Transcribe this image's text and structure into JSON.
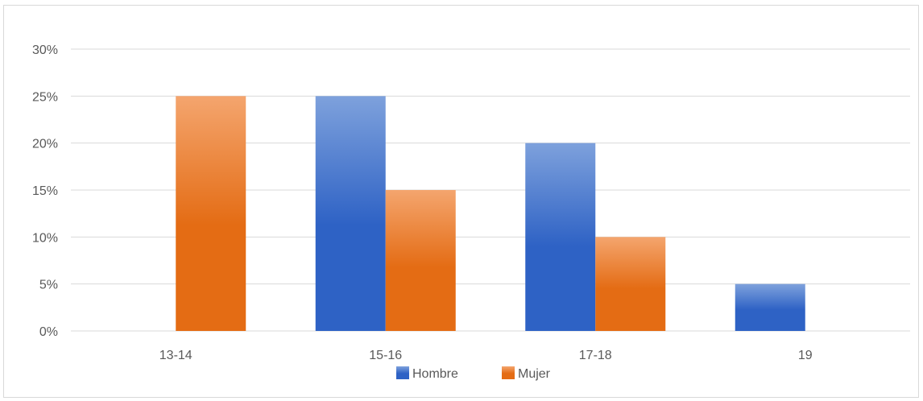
{
  "chart_data": {
    "type": "bar",
    "title": "",
    "xlabel": "",
    "ylabel": "",
    "categories": [
      "13-14",
      "15-16",
      "17-18",
      "19"
    ],
    "series": [
      {
        "name": "Hombre",
        "values": [
          0,
          25,
          20,
          5
        ],
        "color_top": "#7ea1dc",
        "color_bottom": "#2e62c5"
      },
      {
        "name": "Mujer",
        "values": [
          25,
          15,
          10,
          0
        ],
        "color_top": "#f4a56e",
        "color_bottom": "#e46c14"
      }
    ],
    "y_ticks": [
      "0%",
      "5%",
      "10%",
      "15%",
      "20%",
      "25%",
      "30%"
    ],
    "ylim": [
      0,
      30
    ],
    "y_unit": "%",
    "grid": true,
    "legend_position": "bottom",
    "colors": {
      "gridline": "#d9d9d9",
      "axis_text": "#595959"
    }
  }
}
